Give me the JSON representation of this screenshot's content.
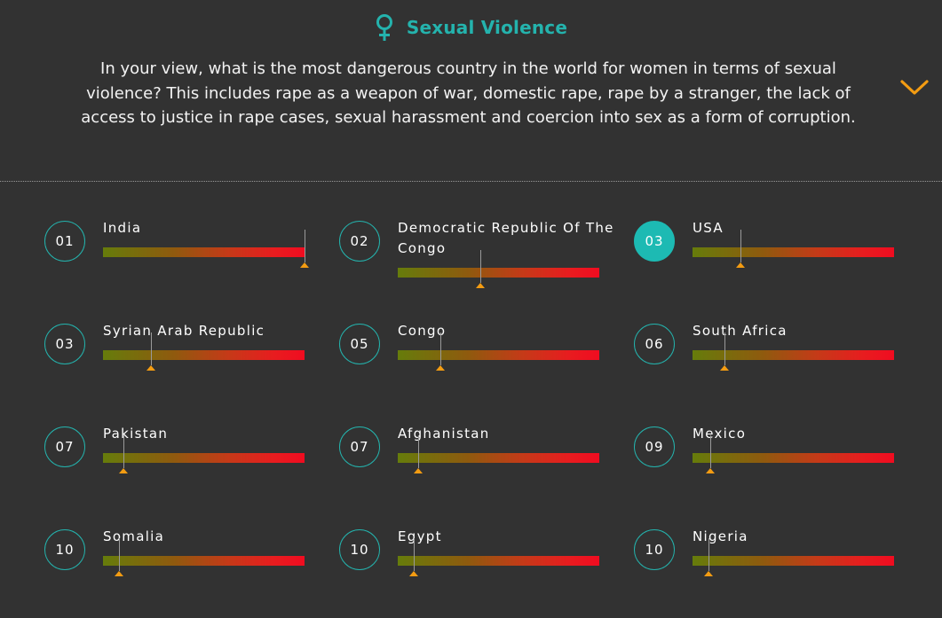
{
  "header": {
    "title": "Sexual Violence",
    "question": "In your view, what is the most dangerous country in the world for women in terms of sexual violence? This includes rape as a weapon of war, domestic rape, rape by a stranger, the lack of access to justice in rape cases, sexual harassment and coercion into sex as a form of corruption.",
    "icon": "female-symbol-icon",
    "expand_icon": "chevron-down-icon"
  },
  "colors": {
    "accent": "#24b3ad",
    "background": "#323232",
    "marker": "#f39c12",
    "bar_start": "#667c0b",
    "bar_end": "#f00c20"
  },
  "countries": [
    {
      "rank": "01",
      "name": "India",
      "level": 1.0,
      "highlighted": false
    },
    {
      "rank": "02",
      "name": "Democratic Republic Of The Congo",
      "level": 0.41,
      "highlighted": false
    },
    {
      "rank": "03",
      "name": "USA",
      "level": 0.24,
      "highlighted": true
    },
    {
      "rank": "03",
      "name": "Syrian Arab Republic",
      "level": 0.24,
      "highlighted": false
    },
    {
      "rank": "05",
      "name": "Congo",
      "level": 0.21,
      "highlighted": false
    },
    {
      "rank": "06",
      "name": "South Africa",
      "level": 0.16,
      "highlighted": false
    },
    {
      "rank": "07",
      "name": "Pakistan",
      "level": 0.1,
      "highlighted": false
    },
    {
      "rank": "07",
      "name": "Afghanistan",
      "level": 0.1,
      "highlighted": false
    },
    {
      "rank": "09",
      "name": "Mexico",
      "level": 0.09,
      "highlighted": false
    },
    {
      "rank": "10",
      "name": "Somalia",
      "level": 0.08,
      "highlighted": false
    },
    {
      "rank": "10",
      "name": "Egypt",
      "level": 0.08,
      "highlighted": false
    },
    {
      "rank": "10",
      "name": "Nigeria",
      "level": 0.08,
      "highlighted": false
    }
  ]
}
